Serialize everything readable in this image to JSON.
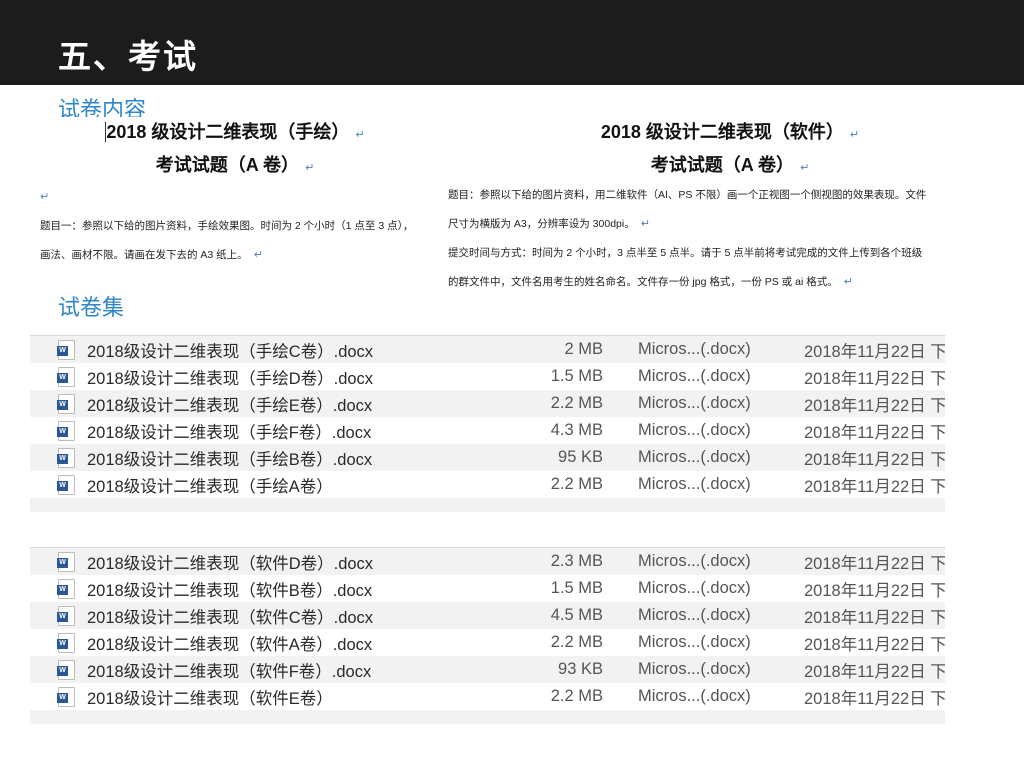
{
  "slide_title": "五、考试",
  "section_content": "试卷内容",
  "section_files": "试卷集",
  "doc_hand": {
    "title1": "2018 级设计二维表现（手绘）",
    "title2": "考试试题（A 卷）",
    "para1": "题目一：参照以下给的图片资料，手绘效果图。时间为 2 个小时（1 点至 3 点），",
    "para2": "画法、画材不限。请画在发下去的 A3 纸上。",
    "return_mark": "↵"
  },
  "doc_soft": {
    "title1": "2018 级设计二维表现（软件）",
    "title2": "考试试题（A 卷）",
    "para1": "题目：参照以下给的图片资料，用二维软件（AI、PS 不限）画一个正视图一个侧视图的效果表现。文件",
    "para2": "尺寸为横版为 A3，分辨率设为 300dpi。",
    "para3": "提交时间与方式：时间为 2 个小时，3 点半至 5 点半。请于 5 点半前将考试完成的文件上传到各个班级",
    "para4": "的群文件中，文件名用考生的姓名命名。文件存一份 jpg 格式，一份 PS 或 ai 格式。"
  },
  "file_icon": "word-doc-icon",
  "file_icon_letter": "W",
  "list_hand": [
    {
      "name": "2018级设计二维表现（手绘C卷）.docx",
      "size": "2 MB",
      "kind": "Micros...(.docx)",
      "date": "2018年11月22日 下"
    },
    {
      "name": "2018级设计二维表现（手绘D卷）.docx",
      "size": "1.5 MB",
      "kind": "Micros...(.docx)",
      "date": "2018年11月22日 下"
    },
    {
      "name": "2018级设计二维表现（手绘E卷）.docx",
      "size": "2.2 MB",
      "kind": "Micros...(.docx)",
      "date": "2018年11月22日 下"
    },
    {
      "name": "2018级设计二维表现（手绘F卷）.docx",
      "size": "4.3 MB",
      "kind": "Micros...(.docx)",
      "date": "2018年11月22日 下"
    },
    {
      "name": "2018级设计二维表现（手绘B卷）.docx",
      "size": "95 KB",
      "kind": "Micros...(.docx)",
      "date": "2018年11月22日 下"
    },
    {
      "name": "2018级设计二维表现（手绘A卷）",
      "size": "2.2 MB",
      "kind": "Micros...(.docx)",
      "date": "2018年11月22日 下"
    }
  ],
  "list_soft": [
    {
      "name": "2018级设计二维表现（软件D卷）.docx",
      "size": "2.3 MB",
      "kind": "Micros...(.docx)",
      "date": "2018年11月22日 下"
    },
    {
      "name": "2018级设计二维表现（软件B卷）.docx",
      "size": "1.5 MB",
      "kind": "Micros...(.docx)",
      "date": "2018年11月22日 下"
    },
    {
      "name": "2018级设计二维表现（软件C卷）.docx",
      "size": "4.5 MB",
      "kind": "Micros...(.docx)",
      "date": "2018年11月22日 下"
    },
    {
      "name": "2018级设计二维表现（软件A卷）.docx",
      "size": "2.2 MB",
      "kind": "Micros...(.docx)",
      "date": "2018年11月22日 下"
    },
    {
      "name": "2018级设计二维表现（软件F卷）.docx",
      "size": "93 KB",
      "kind": "Micros...(.docx)",
      "date": "2018年11月22日 下"
    },
    {
      "name": "2018级设计二维表现（软件E卷）",
      "size": "2.2 MB",
      "kind": "Micros...(.docx)",
      "date": "2018年11月22日 下"
    }
  ]
}
